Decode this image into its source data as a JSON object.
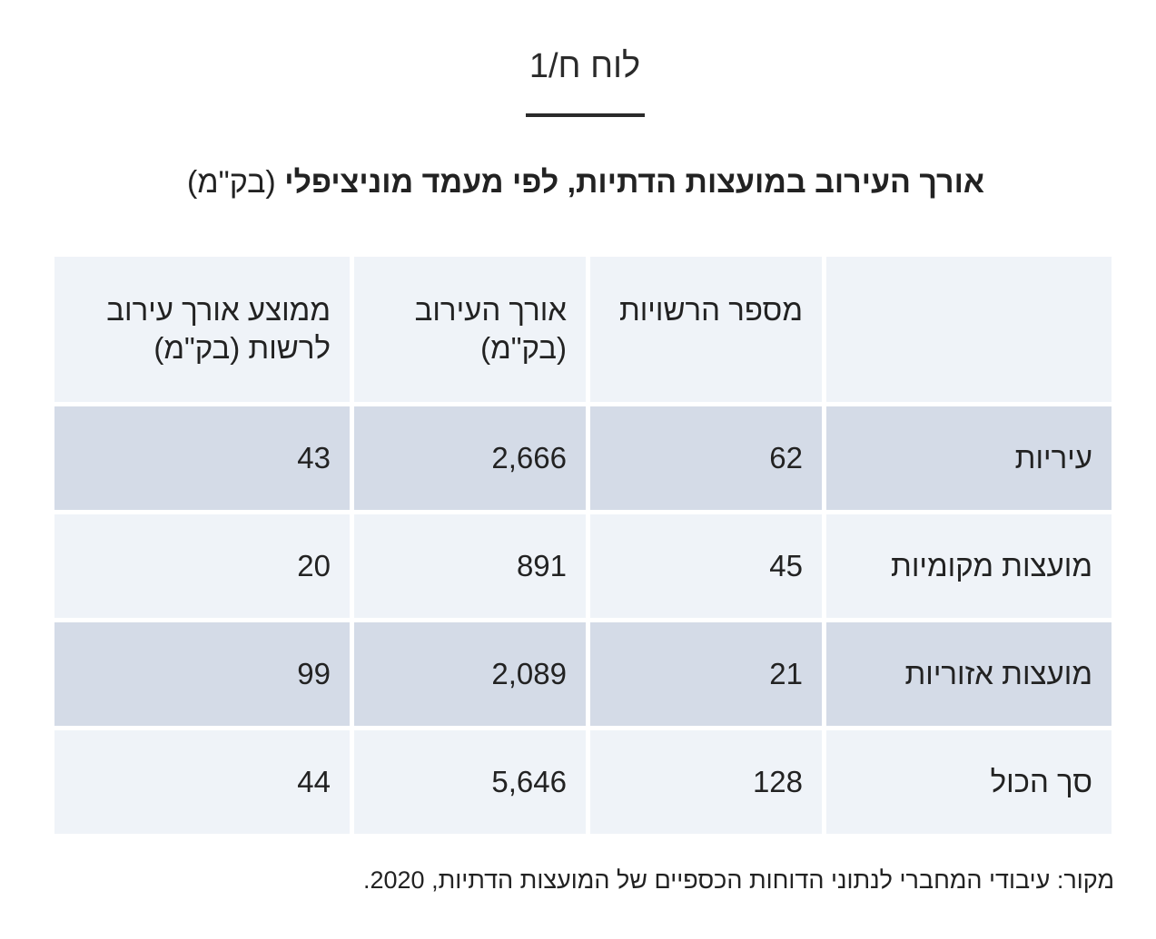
{
  "table_label": "לוח ח/1",
  "title": {
    "main": "אורך העירוב במועצות הדתיות, לפי מעמד מוניציפלי",
    "unit": "(בק\"מ)"
  },
  "table": {
    "headers": [
      "",
      "מספר הרשויות",
      "אורך העירוב (בק\"מ)",
      "ממוצע אורך עירוב לרשות (בק\"מ)"
    ],
    "rows": [
      {
        "label": "עיריות",
        "count": "62",
        "length": "2,666",
        "average": "43"
      },
      {
        "label": "מועצות מקומיות",
        "count": "45",
        "length": "891",
        "average": "20"
      },
      {
        "label": "מועצות אזוריות",
        "count": "21",
        "length": "2,089",
        "average": "99"
      },
      {
        "label": "סך הכול",
        "count": "128",
        "length": "5,646",
        "average": "44"
      }
    ]
  },
  "source": "מקור: עיבודי המחברי לנתוני הדוחות הכספיים של המועצות הדתיות, 2020."
}
